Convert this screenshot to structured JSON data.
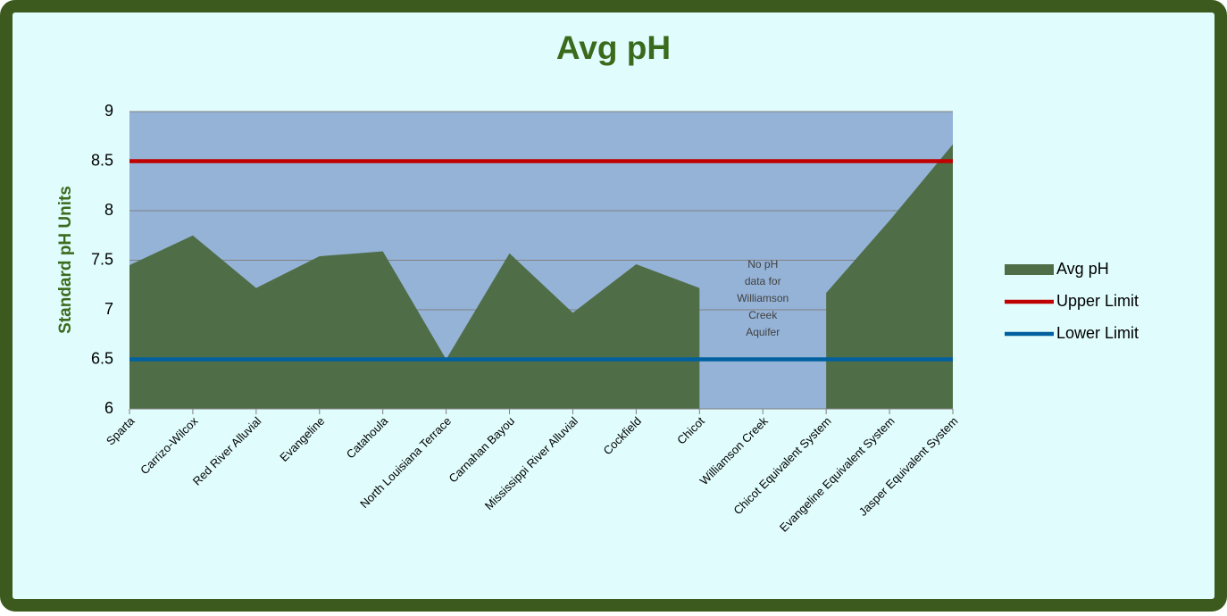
{
  "chart_data": {
    "type": "area",
    "title": "Avg pH",
    "y_label": "Standard pH Units",
    "categories": [
      "Sparta",
      "Carrizo-Wilcox",
      "Red River Alluvial",
      "Evangeline",
      "Catahoula",
      "North Louisiana Terrace",
      "Carnahan Bayou",
      "Mississippi River Alluvial",
      "Cockfield",
      "Chicot",
      "Williamson Creek",
      "Chicot Equivalent System",
      "Evangeline Equivalent System",
      "Jasper Equivalent System"
    ],
    "series": [
      {
        "name": "Avg pH",
        "type": "area",
        "color": "#4f6e47",
        "values": [
          7.45,
          7.75,
          7.22,
          7.54,
          7.59,
          6.5,
          7.57,
          6.97,
          7.46,
          7.22,
          null,
          7.17,
          7.9,
          8.67
        ]
      },
      {
        "name": "Upper Limit",
        "type": "line",
        "color": "#c00000",
        "values": [
          8.5,
          8.5,
          8.5,
          8.5,
          8.5,
          8.5,
          8.5,
          8.5,
          8.5,
          8.5,
          8.5,
          8.5,
          8.5,
          8.5
        ]
      },
      {
        "name": "Lower Limit",
        "type": "line",
        "color": "#0060a0",
        "values": [
          6.5,
          6.5,
          6.5,
          6.5,
          6.5,
          6.5,
          6.5,
          6.5,
          6.5,
          6.5,
          6.5,
          6.5,
          6.5,
          6.5
        ]
      }
    ],
    "annotation": [
      "No pH",
      "data for",
      "Williamson",
      "Creek",
      "Aquifer"
    ],
    "ylim": [
      6,
      9
    ],
    "yticks": [
      6,
      6.5,
      7,
      7.5,
      8,
      8.5,
      9
    ],
    "grid": true,
    "legend": "right"
  }
}
